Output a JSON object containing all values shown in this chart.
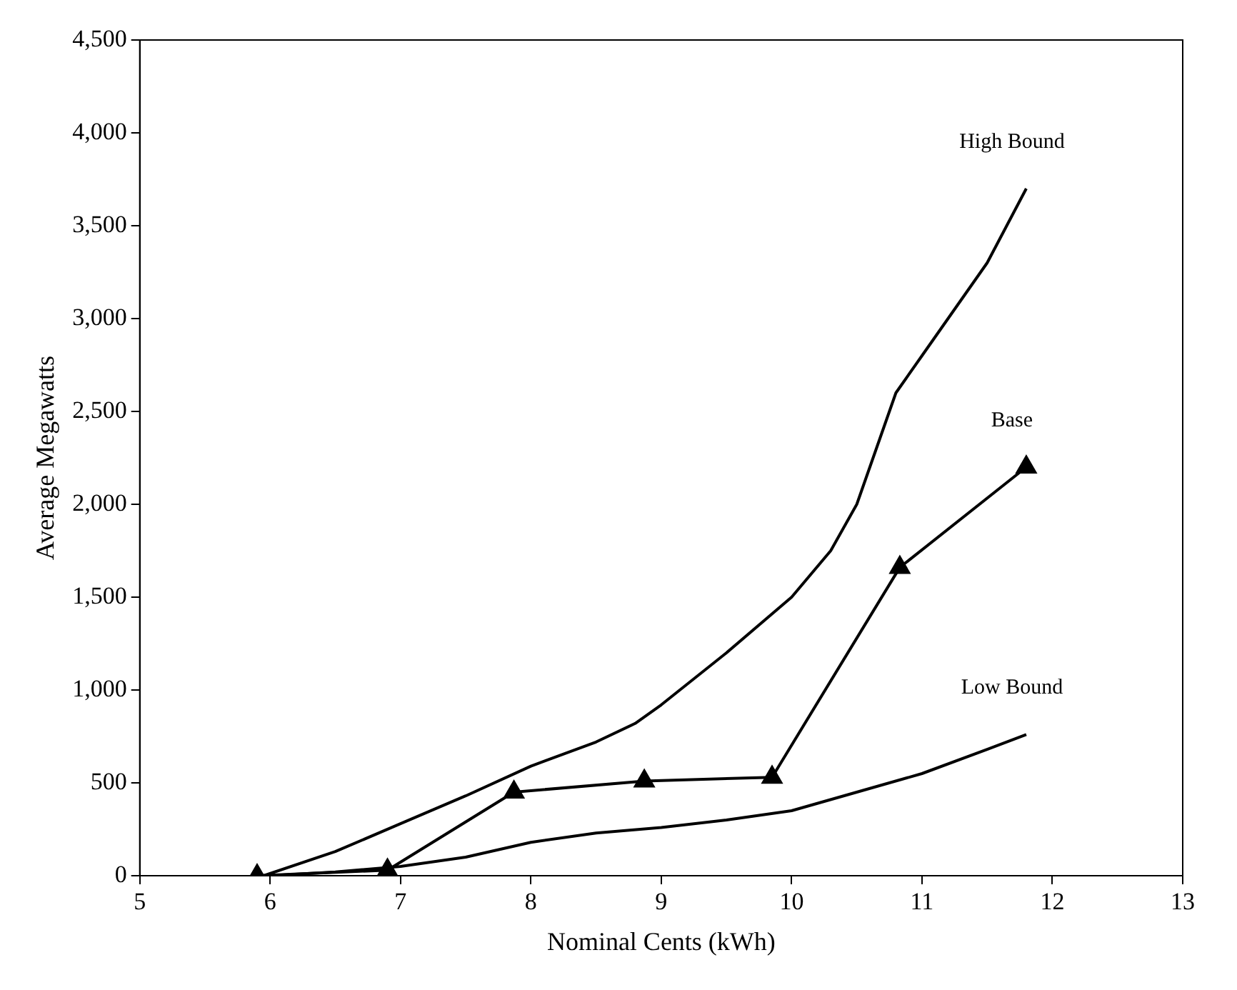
{
  "chart_data": {
    "type": "line",
    "xlabel": "Nominal Cents (kWh)",
    "ylabel": "Average Megawatts",
    "xlim": [
      5,
      13
    ],
    "xticks": [
      5,
      6,
      7,
      8,
      9,
      10,
      11,
      12,
      13
    ],
    "ylim": [
      0,
      4500
    ],
    "yticks": [
      0,
      500,
      {
        "value": 1000,
        "label": "1,000"
      },
      {
        "value": 1500,
        "label": "1,500"
      },
      {
        "value": 2000,
        "label": "2,000"
      },
      {
        "value": 2500,
        "label": "2,500"
      },
      {
        "value": 3000,
        "label": "3,000"
      },
      {
        "value": 3500,
        "label": "3,500"
      },
      {
        "value": 4000,
        "label": "4,000"
      },
      {
        "value": 4500,
        "label": "4,500"
      }
    ],
    "grid": false,
    "legend": false,
    "series": [
      {
        "name": "High Bound",
        "color": "#000000",
        "marker": "none",
        "x": [
          5.95,
          6.5,
          7,
          7.5,
          8,
          8.5,
          8.8,
          9,
          9.5,
          10,
          10.3,
          10.5,
          10.8,
          11,
          11.5,
          11.8
        ],
        "values": [
          0,
          130,
          280,
          430,
          590,
          720,
          820,
          920,
          1200,
          1500,
          1750,
          2000,
          2600,
          2800,
          3300,
          3700
        ]
      },
      {
        "name": "Base",
        "color": "#000000",
        "marker": "triangle",
        "x": [
          5.9,
          6.9,
          7.87,
          8.87,
          9.85,
          10.83,
          11.8
        ],
        "values": [
          0,
          30,
          450,
          510,
          530,
          1660,
          2200
        ]
      },
      {
        "name": "Low Bound",
        "color": "#000000",
        "marker": "none",
        "x": [
          6,
          6.5,
          7,
          7.5,
          8,
          8.5,
          9,
          9.5,
          10,
          10.5,
          11,
          11.5,
          11.8
        ],
        "values": [
          0,
          20,
          50,
          100,
          180,
          230,
          260,
          300,
          350,
          450,
          550,
          680,
          760
        ]
      }
    ]
  }
}
